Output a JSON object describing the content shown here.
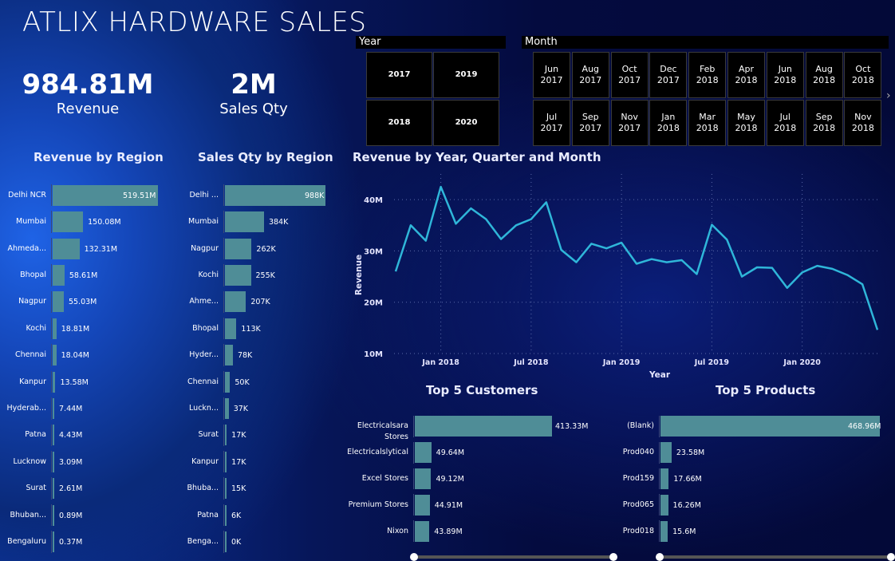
{
  "title": "ATLIX HARDWARE SALES",
  "kpis": [
    {
      "value": "984.81M",
      "label": "Revenue"
    },
    {
      "value": "2M",
      "label": "Sales Qty"
    }
  ],
  "year_slicer": {
    "header": "Year",
    "items": [
      "2017",
      "2019",
      "2018",
      "2020"
    ]
  },
  "month_slicer": {
    "header": "Month",
    "row1": [
      "Jun\n2017",
      "Aug\n2017",
      "Oct\n2017",
      "Dec\n2017",
      "Feb\n2018",
      "Apr\n2018",
      "Jun\n2018",
      "Aug\n2018",
      "Oct\n2018"
    ],
    "row2": [
      "Jul\n2017",
      "Sep\n2017",
      "Nov\n2017",
      "Jan\n2018",
      "Mar\n2018",
      "May\n2018",
      "Jul\n2018",
      "Sep\n2018",
      "Nov\n2018"
    ],
    "next_arrow": "›"
  },
  "revenue_by_region": {
    "title": "Revenue by Region",
    "rows": [
      {
        "label": "Delhi NCR",
        "value": 519.51,
        "text": "519.51M"
      },
      {
        "label": "Mumbai",
        "value": 150.08,
        "text": "150.08M"
      },
      {
        "label": "Ahmeda...",
        "value": 132.31,
        "text": "132.31M"
      },
      {
        "label": "Bhopal",
        "value": 58.61,
        "text": "58.61M"
      },
      {
        "label": "Nagpur",
        "value": 55.03,
        "text": "55.03M"
      },
      {
        "label": "Kochi",
        "value": 18.81,
        "text": "18.81M"
      },
      {
        "label": "Chennai",
        "value": 18.04,
        "text": "18.04M"
      },
      {
        "label": "Kanpur",
        "value": 13.58,
        "text": "13.58M"
      },
      {
        "label": "Hyderab...",
        "value": 7.44,
        "text": "7.44M"
      },
      {
        "label": "Patna",
        "value": 4.43,
        "text": "4.43M"
      },
      {
        "label": "Lucknow",
        "value": 3.09,
        "text": "3.09M"
      },
      {
        "label": "Surat",
        "value": 2.61,
        "text": "2.61M"
      },
      {
        "label": "Bhuban...",
        "value": 0.89,
        "text": "0.89M"
      },
      {
        "label": "Bengaluru",
        "value": 0.37,
        "text": "0.37M"
      }
    ]
  },
  "qty_by_region": {
    "title": "Sales Qty by Region",
    "rows": [
      {
        "label": "Delhi ...",
        "value": 988,
        "text": "988K"
      },
      {
        "label": "Mumbai",
        "value": 384,
        "text": "384K"
      },
      {
        "label": "Nagpur",
        "value": 262,
        "text": "262K"
      },
      {
        "label": "Kochi",
        "value": 255,
        "text": "255K"
      },
      {
        "label": "Ahme...",
        "value": 207,
        "text": "207K"
      },
      {
        "label": "Bhopal",
        "value": 113,
        "text": "113K"
      },
      {
        "label": "Hyder...",
        "value": 78,
        "text": "78K"
      },
      {
        "label": "Chennai",
        "value": 50,
        "text": "50K"
      },
      {
        "label": "Luckn...",
        "value": 37,
        "text": "37K"
      },
      {
        "label": "Surat",
        "value": 17,
        "text": "17K"
      },
      {
        "label": "Kanpur",
        "value": 17,
        "text": "17K"
      },
      {
        "label": "Bhuba...",
        "value": 15,
        "text": "15K"
      },
      {
        "label": "Patna",
        "value": 6,
        "text": "6K"
      },
      {
        "label": "Benga...",
        "value": 0.3,
        "text": "0K"
      }
    ]
  },
  "top_customers": {
    "title": "Top 5 Customers",
    "rows": [
      {
        "label": "Electricalsara Stores",
        "value": 413.33,
        "text": "413.33M"
      },
      {
        "label": "Electricalslytical",
        "value": 49.64,
        "text": "49.64M"
      },
      {
        "label": "Excel Stores",
        "value": 49.12,
        "text": "49.12M"
      },
      {
        "label": "Premium Stores",
        "value": 44.91,
        "text": "44.91M"
      },
      {
        "label": "Nixon",
        "value": 43.89,
        "text": "43.89M"
      }
    ]
  },
  "top_products": {
    "title": "Top 5 Products",
    "rows": [
      {
        "label": "(Blank)",
        "value": 468.96,
        "text": "468.96M"
      },
      {
        "label": "Prod040",
        "value": 23.58,
        "text": "23.58M"
      },
      {
        "label": "Prod159",
        "value": 17.66,
        "text": "17.66M"
      },
      {
        "label": "Prod065",
        "value": 16.26,
        "text": "16.26M"
      },
      {
        "label": "Prod018",
        "value": 15.6,
        "text": "15.6M"
      }
    ]
  },
  "colors": {
    "bar": "#4f8d97",
    "line": "#2fb6d9"
  },
  "chart_data": {
    "type": "line",
    "title": "Revenue by Year, Quarter and Month",
    "xlabel": "Year",
    "ylabel": "Revenue",
    "x": [
      "2017-10",
      "2017-11",
      "2017-12",
      "2018-01",
      "2018-02",
      "2018-03",
      "2018-04",
      "2018-05",
      "2018-06",
      "2018-07",
      "2018-08",
      "2018-09",
      "2018-10",
      "2018-11",
      "2018-12",
      "2019-01",
      "2019-02",
      "2019-03",
      "2019-04",
      "2019-05",
      "2019-06",
      "2019-07",
      "2019-08",
      "2019-09",
      "2019-10",
      "2019-11",
      "2019-12",
      "2020-01",
      "2020-02",
      "2020-03",
      "2020-04",
      "2020-05",
      "2020-06"
    ],
    "series": [
      {
        "values": [
          26.0,
          35.0,
          32.0,
          42.5,
          35.3,
          38.3,
          36.2,
          32.3,
          35.0,
          36.2,
          39.5,
          30.2,
          27.8,
          31.4,
          30.5,
          31.6,
          27.5,
          28.4,
          27.8,
          28.2,
          25.5,
          35.1,
          32.2,
          25.0,
          26.8,
          26.7,
          22.8,
          25.8,
          27.1,
          26.5,
          25.3,
          23.5,
          14.6
        ]
      }
    ],
    "ylim": [
      10,
      45
    ],
    "yticks": [
      "10M",
      "20M",
      "30M",
      "40M"
    ],
    "yticks_values": [
      10,
      20,
      30,
      40
    ],
    "xticks": [
      "Jan 2018",
      "Jul 2018",
      "Jan 2019",
      "Jul 2019",
      "Jan 2020"
    ],
    "xticks_at": [
      "2018-01",
      "2018-07",
      "2019-01",
      "2019-07",
      "2020-01"
    ],
    "grid": true
  }
}
